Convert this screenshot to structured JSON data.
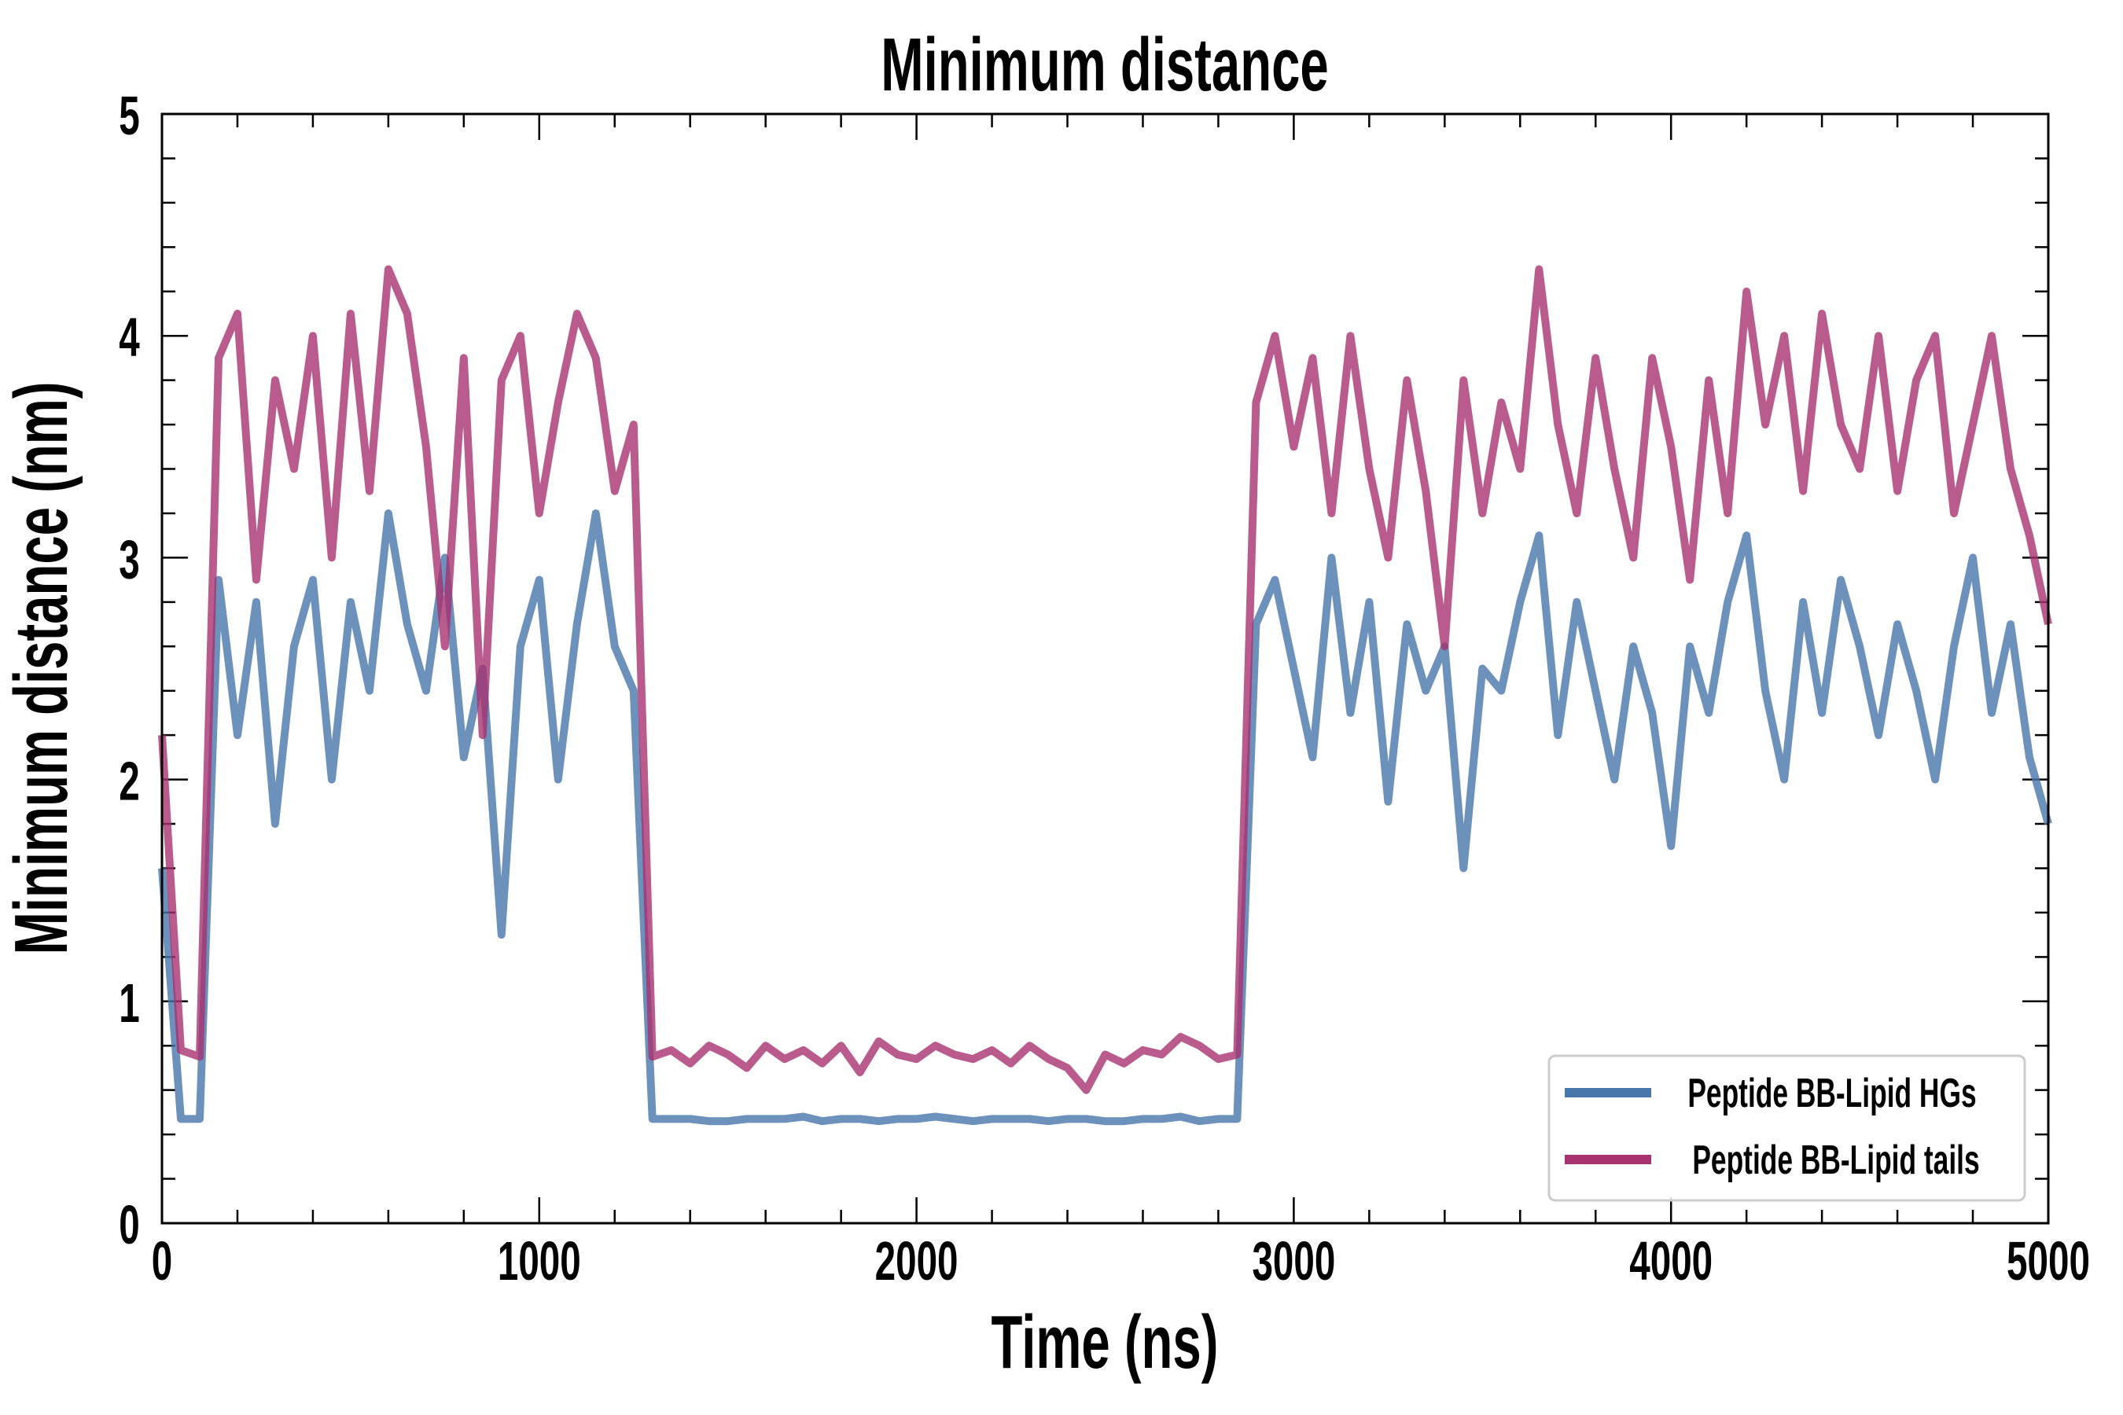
{
  "chart_data": {
    "type": "line",
    "title": "Minimum distance",
    "xlabel": "Time (ns)",
    "ylabel": "Minimum distance (nm)",
    "xlim": [
      0,
      5000
    ],
    "ylim": [
      0,
      5
    ],
    "xticks": [
      0,
      1000,
      2000,
      3000,
      4000,
      5000
    ],
    "yticks": [
      0,
      1,
      2,
      3,
      4,
      5
    ],
    "xminor_step": 200,
    "yminor_step": 0.2,
    "grid": false,
    "legend_position": "bottom-right",
    "x": [
      0,
      50,
      100,
      150,
      200,
      250,
      300,
      350,
      400,
      450,
      500,
      550,
      600,
      650,
      700,
      750,
      800,
      850,
      900,
      950,
      1000,
      1050,
      1100,
      1150,
      1200,
      1250,
      1300,
      1350,
      1400,
      1450,
      1500,
      1550,
      1600,
      1650,
      1700,
      1750,
      1800,
      1850,
      1900,
      1950,
      2000,
      2050,
      2100,
      2150,
      2200,
      2250,
      2300,
      2350,
      2400,
      2450,
      2500,
      2550,
      2600,
      2650,
      2700,
      2750,
      2800,
      2850,
      2900,
      2950,
      3000,
      3050,
      3100,
      3150,
      3200,
      3250,
      3300,
      3350,
      3400,
      3450,
      3500,
      3550,
      3600,
      3650,
      3700,
      3750,
      3800,
      3850,
      3900,
      3950,
      4000,
      4050,
      4100,
      4150,
      4200,
      4250,
      4300,
      4350,
      4400,
      4450,
      4500,
      4550,
      4600,
      4650,
      4700,
      4750,
      4800,
      4850,
      4900,
      4950,
      5000
    ],
    "series": [
      {
        "name": "Peptide BB-Lipid HGs",
        "color": "#4777ab",
        "values": [
          1.6,
          0.47,
          0.47,
          2.9,
          2.2,
          2.8,
          1.8,
          2.6,
          2.9,
          2.0,
          2.8,
          2.4,
          3.2,
          2.7,
          2.4,
          3.0,
          2.1,
          2.5,
          1.3,
          2.6,
          2.9,
          2.0,
          2.7,
          3.2,
          2.6,
          2.4,
          0.47,
          0.47,
          0.47,
          0.46,
          0.46,
          0.47,
          0.47,
          0.47,
          0.48,
          0.46,
          0.47,
          0.47,
          0.46,
          0.47,
          0.47,
          0.48,
          0.47,
          0.46,
          0.47,
          0.47,
          0.47,
          0.46,
          0.47,
          0.47,
          0.46,
          0.46,
          0.47,
          0.47,
          0.48,
          0.46,
          0.47,
          0.47,
          2.7,
          2.9,
          2.5,
          2.1,
          3.0,
          2.3,
          2.8,
          1.9,
          2.7,
          2.4,
          2.6,
          1.6,
          2.5,
          2.4,
          2.8,
          3.1,
          2.2,
          2.8,
          2.4,
          2.0,
          2.6,
          2.3,
          1.7,
          2.6,
          2.3,
          2.8,
          3.1,
          2.4,
          2.0,
          2.8,
          2.3,
          2.9,
          2.6,
          2.2,
          2.7,
          2.4,
          2.0,
          2.6,
          3.0,
          2.3,
          2.7,
          2.1,
          1.8
        ]
      },
      {
        "name": "Peptide BB-Lipid tails",
        "color": "#a83270",
        "values": [
          2.2,
          0.78,
          0.75,
          3.9,
          4.1,
          2.9,
          3.8,
          3.4,
          4.0,
          3.0,
          4.1,
          3.3,
          4.3,
          4.1,
          3.5,
          2.6,
          3.9,
          2.2,
          3.8,
          4.0,
          3.2,
          3.7,
          4.1,
          3.9,
          3.3,
          3.6,
          0.75,
          0.78,
          0.72,
          0.8,
          0.76,
          0.7,
          0.8,
          0.74,
          0.78,
          0.72,
          0.8,
          0.68,
          0.82,
          0.76,
          0.74,
          0.8,
          0.76,
          0.74,
          0.78,
          0.72,
          0.8,
          0.74,
          0.7,
          0.6,
          0.76,
          0.72,
          0.78,
          0.76,
          0.84,
          0.8,
          0.74,
          0.76,
          3.7,
          4.0,
          3.5,
          3.9,
          3.2,
          4.0,
          3.4,
          3.0,
          3.8,
          3.3,
          2.6,
          3.8,
          3.2,
          3.7,
          3.4,
          4.3,
          3.6,
          3.2,
          3.9,
          3.4,
          3.0,
          3.9,
          3.5,
          2.9,
          3.8,
          3.2,
          4.2,
          3.6,
          4.0,
          3.3,
          4.1,
          3.6,
          3.4,
          4.0,
          3.3,
          3.8,
          4.0,
          3.2,
          3.6,
          4.0,
          3.4,
          3.1,
          2.7
        ]
      }
    ]
  }
}
